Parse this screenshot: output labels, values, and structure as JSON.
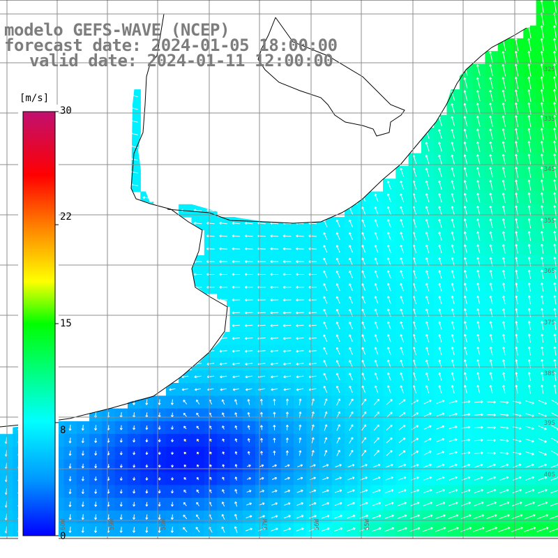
{
  "title": {
    "line1": "modelo GEFS-WAVE (NCEP)",
    "line2": "forecast date: 2024-01-05 18:00:00",
    "line3": "valid date: 2024-01-11 12:00:00"
  },
  "colorbar": {
    "unit": "[m/s]",
    "ticks": [
      "30",
      "22",
      "15",
      "8",
      "0"
    ],
    "tick_values": [
      30,
      22,
      15,
      8,
      0
    ],
    "range": [
      0,
      30
    ],
    "colors": [
      "#0000ff",
      "#00b4ff",
      "#00ffff",
      "#00ff00",
      "#ffff00",
      "#ff8000",
      "#ff0000",
      "#c01070"
    ]
  },
  "map": {
    "lat_labels": [
      "32S",
      "33S",
      "34S",
      "35S",
      "36S",
      "37S",
      "38S",
      "39S",
      "40S"
    ],
    "lon_labels": [
      "60W",
      "59W",
      "58W",
      "57W",
      "56W",
      "55W"
    ],
    "land_color": "#ffffff",
    "coastline_color": "#000000",
    "grid_color": "#8c8c8c",
    "arrow_color": "#ffffff",
    "field": "wind speed and direction"
  }
}
